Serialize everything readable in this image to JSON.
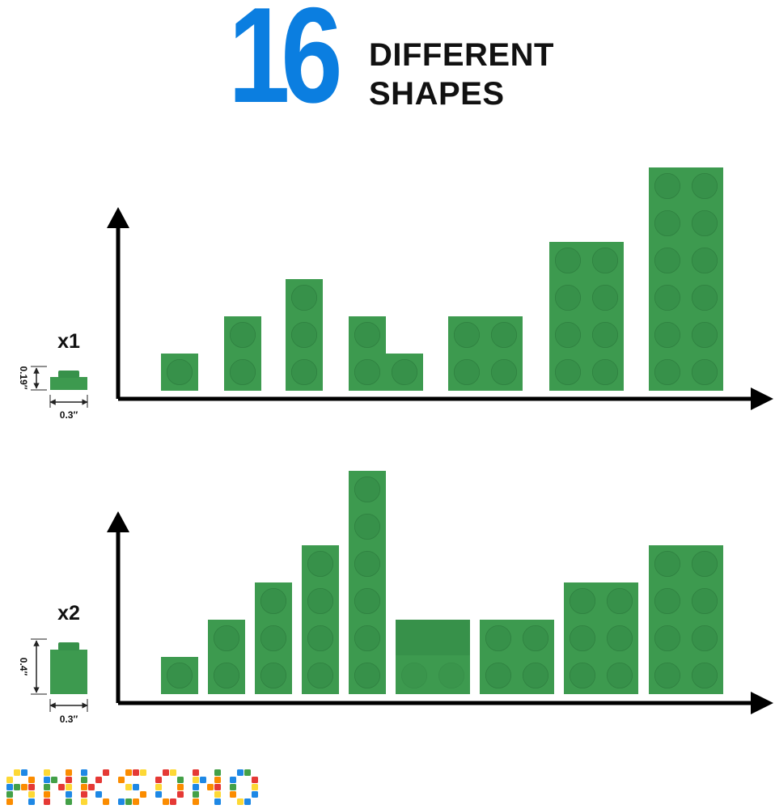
{
  "headline": {
    "number": "16",
    "line1": "DIFFERENT",
    "line2": "SHAPES"
  },
  "colors": {
    "headline_number": "#0b7ee0",
    "plate_face": "#3d9a4f",
    "plate_stud": "#37914a",
    "axis": "#000000"
  },
  "sections": [
    {
      "id": "thin",
      "quantity_label": "x1",
      "height_label": "0.19″",
      "width_label": "0.3″",
      "pieces": [
        {
          "shape": "1x1"
        },
        {
          "shape": "1x2"
        },
        {
          "shape": "1x3"
        },
        {
          "shape": "L-corner"
        },
        {
          "shape": "2x2"
        },
        {
          "shape": "2x4"
        },
        {
          "shape": "2x6"
        }
      ]
    },
    {
      "id": "tall",
      "quantity_label": "x2",
      "height_label": "0.4″",
      "width_label": "0.3″",
      "pieces": [
        {
          "shape": "1x1"
        },
        {
          "shape": "1x2"
        },
        {
          "shape": "1x3"
        },
        {
          "shape": "1x4"
        },
        {
          "shape": "1x6"
        },
        {
          "shape": "2x2-tile"
        },
        {
          "shape": "2x2"
        },
        {
          "shape": "2x3"
        },
        {
          "shape": "2x4"
        }
      ]
    }
  ],
  "brand": {
    "logo_text": "ANKSONO",
    "logo_icon": "building-brick-letters-logo"
  }
}
